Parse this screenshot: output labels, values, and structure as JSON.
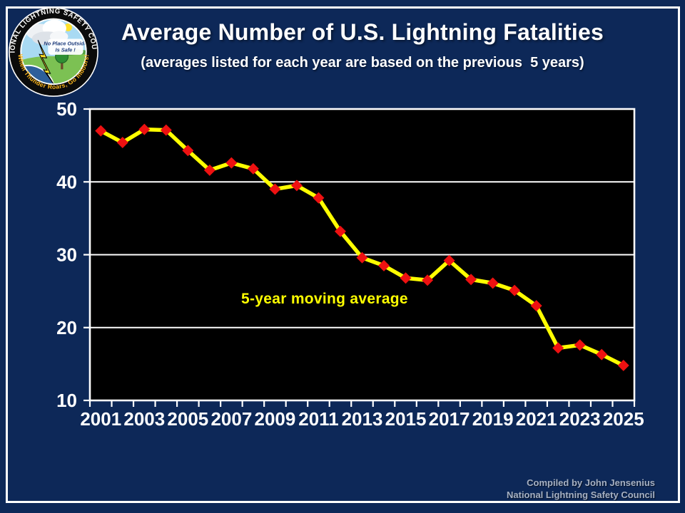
{
  "page": {
    "background_color": "#0d2858",
    "frame_color": "#ffffff"
  },
  "header": {
    "title": "Average Number of U.S. Lightning Fatalities",
    "subtitle": "(averages listed for each year are based on the previous  5 years)"
  },
  "logo": {
    "ring_text_top": "NATIONAL LIGHTNING SAFETY COUNCIL",
    "ring_text_bottom": "When Thunder Roars, Go Indoors!",
    "sign_line1": "No Place Outside",
    "sign_line2": "Is Safe !"
  },
  "footer": {
    "credit_line1": "Compiled by John Jensenius",
    "credit_line2": "National Lightning Safety Council"
  },
  "chart_data": {
    "type": "line",
    "title": "Average Number of U.S. Lightning Fatalities",
    "annotation": "5-year moving average",
    "x": [
      2001,
      2002,
      2003,
      2004,
      2005,
      2006,
      2007,
      2008,
      2009,
      2010,
      2011,
      2012,
      2013,
      2014,
      2015,
      2016,
      2017,
      2018,
      2019,
      2020,
      2021,
      2022,
      2023,
      2024,
      2025
    ],
    "values": [
      47.0,
      45.4,
      47.2,
      47.1,
      44.3,
      41.6,
      42.6,
      41.8,
      39.0,
      39.5,
      37.8,
      33.2,
      29.6,
      28.5,
      26.8,
      26.5,
      29.2,
      26.6,
      26.1,
      25.1,
      23.0,
      17.2,
      17.6,
      16.3,
      14.8
    ],
    "x_tick_labels": [
      "2001",
      "2003",
      "2005",
      "2007",
      "2009",
      "2011",
      "2013",
      "2015",
      "2017",
      "2019",
      "2021",
      "2023",
      "2025"
    ],
    "y_ticks": [
      10,
      20,
      30,
      40,
      50
    ],
    "ylim": [
      10,
      50
    ],
    "grid": true,
    "legend_position": "none",
    "line_color": "#ffff00",
    "marker_color": "#ee1111",
    "marker_shape": "diamond",
    "plot_bg": "#000000",
    "grid_color": "#ffffff",
    "axis_text_color": "#ffffff"
  }
}
